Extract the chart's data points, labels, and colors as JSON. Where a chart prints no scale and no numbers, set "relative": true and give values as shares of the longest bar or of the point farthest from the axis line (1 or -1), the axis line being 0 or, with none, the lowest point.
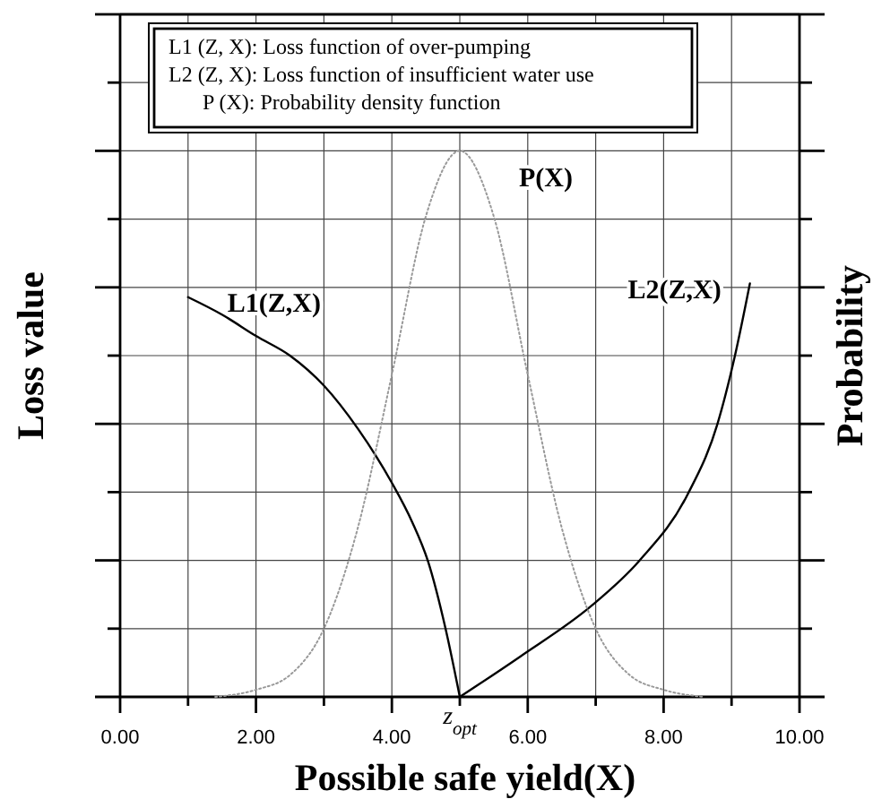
{
  "chart_data": {
    "type": "line",
    "relative": true,
    "xlabel": "Possible safe yield(X)",
    "ylabel": "Loss value",
    "y2label": "Probability",
    "xlim": [
      0,
      10
    ],
    "xticks": [
      {
        "value": 0,
        "label": "0.00"
      },
      {
        "value": 1,
        "label": null
      },
      {
        "value": 2,
        "label": "2.00"
      },
      {
        "value": 3,
        "label": null
      },
      {
        "value": 4,
        "label": "4.00"
      },
      {
        "value": 5,
        "label": null
      },
      {
        "value": 6,
        "label": "6.00"
      },
      {
        "value": 7,
        "label": null
      },
      {
        "value": 8,
        "label": "8.00"
      },
      {
        "value": 9,
        "label": null
      },
      {
        "value": 10,
        "label": "10.00"
      }
    ],
    "grid": true,
    "legend": false,
    "marker": "none",
    "series": [
      {
        "name": "L1(Z,X)",
        "color": "#000000",
        "line_style": "solid",
        "x": [
          1.0,
          1.5,
          2.0,
          2.5,
          3.0,
          3.5,
          4.0,
          4.3,
          4.53,
          4.79,
          5.0
        ],
        "values": [
          0.732,
          0.7,
          0.661,
          0.625,
          0.57,
          0.491,
          0.392,
          0.32,
          0.249,
          0.125,
          0.0
        ]
      },
      {
        "name": "L2(Z,X)",
        "color": "#000000",
        "line_style": "solid",
        "x": [
          5.0,
          5.89,
          6.94,
          7.64,
          8.35,
          8.79,
          9.05,
          9.27
        ],
        "values": [
          0.0,
          0.074,
          0.167,
          0.249,
          0.37,
          0.499,
          0.625,
          0.757
        ]
      },
      {
        "name": "P(X)",
        "color": "#999999",
        "line_style": "dotted",
        "x": [
          1.4,
          2.0,
          2.5,
          3.0,
          3.5,
          4.0,
          4.5,
          5.0,
          5.5,
          6.0,
          6.5,
          7.0,
          7.5,
          8.0,
          8.6
        ],
        "values": [
          0.0,
          0.013,
          0.04,
          0.125,
          0.31,
          0.59,
          0.88,
          1.0,
          0.88,
          0.59,
          0.31,
          0.125,
          0.04,
          0.013,
          0.0
        ]
      }
    ],
    "annotations": [
      "L1 (Z, X): Loss function of over-pumping",
      "L2 (Z, X): Loss function of insufficient water use",
      "P (X): Probability density function",
      "z$_{opt}$"
    ]
  }
}
